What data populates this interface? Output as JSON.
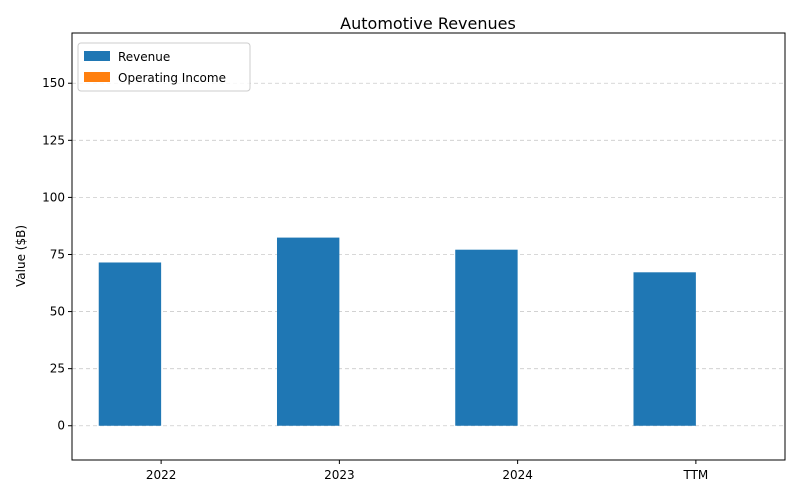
{
  "chart_data": {
    "type": "bar",
    "title": "Automotive Revenues",
    "xlabel": "",
    "ylabel": "Value ($B)",
    "categories": [
      "2022",
      "2023",
      "2024",
      "TTM"
    ],
    "series": [
      {
        "name": "Revenue",
        "values": [
          71.5,
          82.4,
          77.1,
          67.2
        ],
        "color": "#1f77b4"
      },
      {
        "name": "Operating Income",
        "values": [
          0,
          0,
          0,
          0
        ],
        "color": "#ff7f0e"
      }
    ],
    "ylim": [
      -15,
      172
    ],
    "yticks": [
      0,
      25,
      50,
      75,
      100,
      125,
      150
    ],
    "grid": "y-dashed",
    "legend_position": "top-left"
  }
}
